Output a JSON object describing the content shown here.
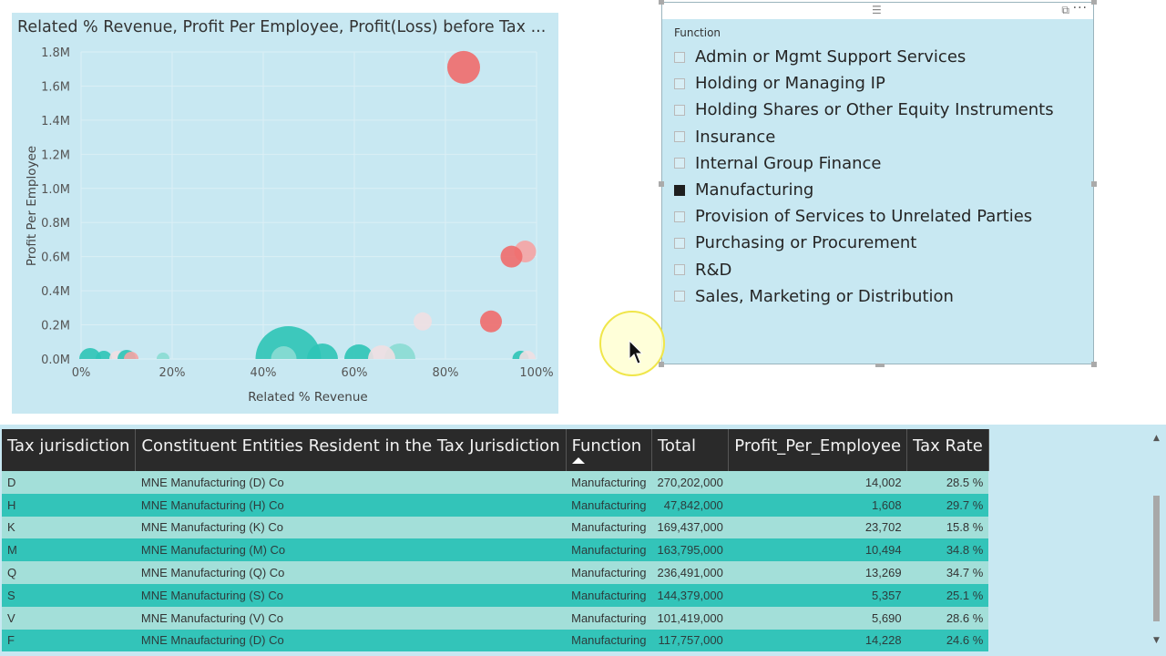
{
  "scatter": {
    "title": "Related % Revenue, Profit Per Employee, Profit(Loss) before Tax ...",
    "xlabel": "Related % Revenue",
    "ylabel": "Profit Per Employee",
    "x_ticks": [
      "0%",
      "20%",
      "40%",
      "60%",
      "80%",
      "100%"
    ],
    "y_ticks": [
      "0.0M",
      "0.2M",
      "0.4M",
      "0.6M",
      "0.8M",
      "1.0M",
      "1.2M",
      "1.4M",
      "1.6M",
      "1.8M"
    ],
    "colors": {
      "teal": "#2ec4b6",
      "pale_teal": "#8adbd3",
      "red": "#f06b6b",
      "pink": "#f5a3a3",
      "pale": "#f0dfe2"
    }
  },
  "chart_data": {
    "type": "scatter",
    "title": "Related % Revenue, Profit Per Employee, Profit(Loss) before Tax ...",
    "xlabel": "Related % Revenue",
    "ylabel": "Profit Per Employee",
    "xlim": [
      0,
      1
    ],
    "ylim": [
      0,
      1.8
    ],
    "x_unit": "fraction",
    "y_unit": "M",
    "points": [
      {
        "x": 0.84,
        "y": 1.71,
        "size": 18,
        "color": "red"
      },
      {
        "x": 0.975,
        "y": 0.63,
        "size": 12,
        "color": "pink"
      },
      {
        "x": 0.945,
        "y": 0.6,
        "size": 12,
        "color": "red"
      },
      {
        "x": 0.9,
        "y": 0.22,
        "size": 12,
        "color": "red"
      },
      {
        "x": 0.75,
        "y": 0.22,
        "size": 10,
        "color": "pale"
      },
      {
        "x": 0.455,
        "y": 0.0,
        "size": 36,
        "color": "teal"
      },
      {
        "x": 0.53,
        "y": 0.0,
        "size": 17,
        "color": "teal"
      },
      {
        "x": 0.61,
        "y": 0.0,
        "size": 16,
        "color": "teal"
      },
      {
        "x": 0.7,
        "y": 0.0,
        "size": 17,
        "color": "pale_teal"
      },
      {
        "x": 0.66,
        "y": 0.0,
        "size": 15,
        "color": "pale"
      },
      {
        "x": 0.445,
        "y": 0.0,
        "size": 14,
        "color": "pale_teal"
      },
      {
        "x": 0.02,
        "y": 0.0,
        "size": 12,
        "color": "teal"
      },
      {
        "x": 0.05,
        "y": 0.0,
        "size": 9,
        "color": "teal"
      },
      {
        "x": 0.08,
        "y": 0.0,
        "size": 9,
        "color": "pale"
      },
      {
        "x": 0.1,
        "y": 0.0,
        "size": 10,
        "color": "teal"
      },
      {
        "x": 0.11,
        "y": 0.0,
        "size": 8,
        "color": "pink"
      },
      {
        "x": 0.18,
        "y": 0.0,
        "size": 7,
        "color": "pale_teal"
      },
      {
        "x": 0.965,
        "y": 0.0,
        "size": 9,
        "color": "teal"
      },
      {
        "x": 0.98,
        "y": 0.0,
        "size": 9,
        "color": "pale"
      }
    ]
  },
  "slicer": {
    "heading": "Function",
    "items": [
      {
        "label": "Admin or Mgmt Support Services",
        "checked": false
      },
      {
        "label": "Holding or Managing IP",
        "checked": false
      },
      {
        "label": "Holding Shares or Other Equity Instruments",
        "checked": false
      },
      {
        "label": "Insurance",
        "checked": false
      },
      {
        "label": "Internal Group Finance",
        "checked": false
      },
      {
        "label": "Manufacturing",
        "checked": true
      },
      {
        "label": "Provision of Services to Unrelated Parties",
        "checked": false
      },
      {
        "label": "Purchasing or Procurement",
        "checked": false
      },
      {
        "label": "R&D",
        "checked": false
      },
      {
        "label": "Sales, Marketing or Distribution",
        "checked": false
      }
    ]
  },
  "table": {
    "headers": [
      "Tax jurisdiction",
      "Constituent Entities Resident in the Tax Jurisdiction",
      "Function",
      "Total",
      "Profit_Per_Employee",
      "Tax Rate"
    ],
    "rows": [
      [
        "D",
        "MNE Manufacturing (D) Co",
        "Manufacturing",
        "270,202,000",
        "14,002",
        "28.5 %"
      ],
      [
        "H",
        "MNE Manufacturing (H) Co",
        "Manufacturing",
        "47,842,000",
        "1,608",
        "29.7 %"
      ],
      [
        "K",
        "MNE Manufacturing (K) Co",
        "Manufacturing",
        "169,437,000",
        "23,702",
        "15.8 %"
      ],
      [
        "M",
        "MNE Manufacturing (M) Co",
        "Manufacturing",
        "163,795,000",
        "10,494",
        "34.8 %"
      ],
      [
        "Q",
        "MNE Manufacturing (Q) Co",
        "Manufacturing",
        "236,491,000",
        "13,269",
        "34.7 %"
      ],
      [
        "S",
        "MNE Manufacturing (S) Co",
        "Manufacturing",
        "144,379,000",
        "5,357",
        "25.1 %"
      ],
      [
        "V",
        "MNE Manufacturing (V) Co",
        "Manufacturing",
        "101,419,000",
        "5,690",
        "28.6 %"
      ],
      [
        "F",
        "MNE Mnaufacturing (D) Co",
        "Manufacturing",
        "117,757,000",
        "14,228",
        "24.6 %"
      ]
    ]
  }
}
